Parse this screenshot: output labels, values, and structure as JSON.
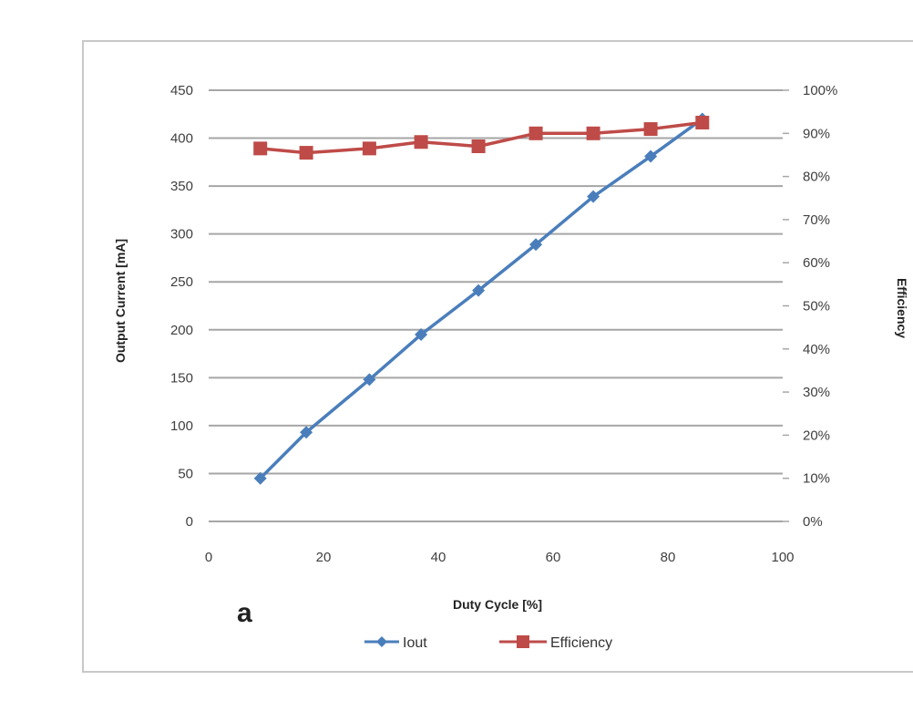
{
  "chart_data": {
    "type": "line",
    "panel_label": "a",
    "xlabel": "Duty Cycle [%]",
    "ylabel": "Output Current [mA]",
    "y2label": "Efficiency",
    "xlim": [
      0,
      100
    ],
    "ylim": [
      0,
      450
    ],
    "y2lim": [
      0,
      100
    ],
    "x_ticks": [
      "0",
      "20",
      "40",
      "60",
      "80",
      "100"
    ],
    "y_ticks": [
      "0",
      "50",
      "100",
      "150",
      "200",
      "250",
      "300",
      "350",
      "400",
      "450"
    ],
    "y2_ticks": [
      "0%",
      "10%",
      "20%",
      "30%",
      "40%",
      "50%",
      "60%",
      "70%",
      "80%",
      "90%",
      "100%"
    ],
    "grid": "horizontal",
    "legend_position": "bottom",
    "series": [
      {
        "name": "Iout",
        "axis": "left",
        "color": "#4a7ebb",
        "marker": "diamond",
        "x": [
          9,
          17,
          28,
          37,
          47,
          57,
          67,
          77,
          86
        ],
        "y": [
          45,
          93,
          148,
          195,
          241,
          289,
          339,
          381,
          420
        ]
      },
      {
        "name": "Efficiency",
        "axis": "right",
        "color": "#be4b48",
        "marker": "square",
        "x": [
          9,
          17,
          28,
          37,
          47,
          57,
          67,
          77,
          86
        ],
        "y": [
          86.5,
          85.5,
          86.5,
          88,
          87,
          90,
          90,
          91,
          92.5
        ]
      }
    ]
  }
}
